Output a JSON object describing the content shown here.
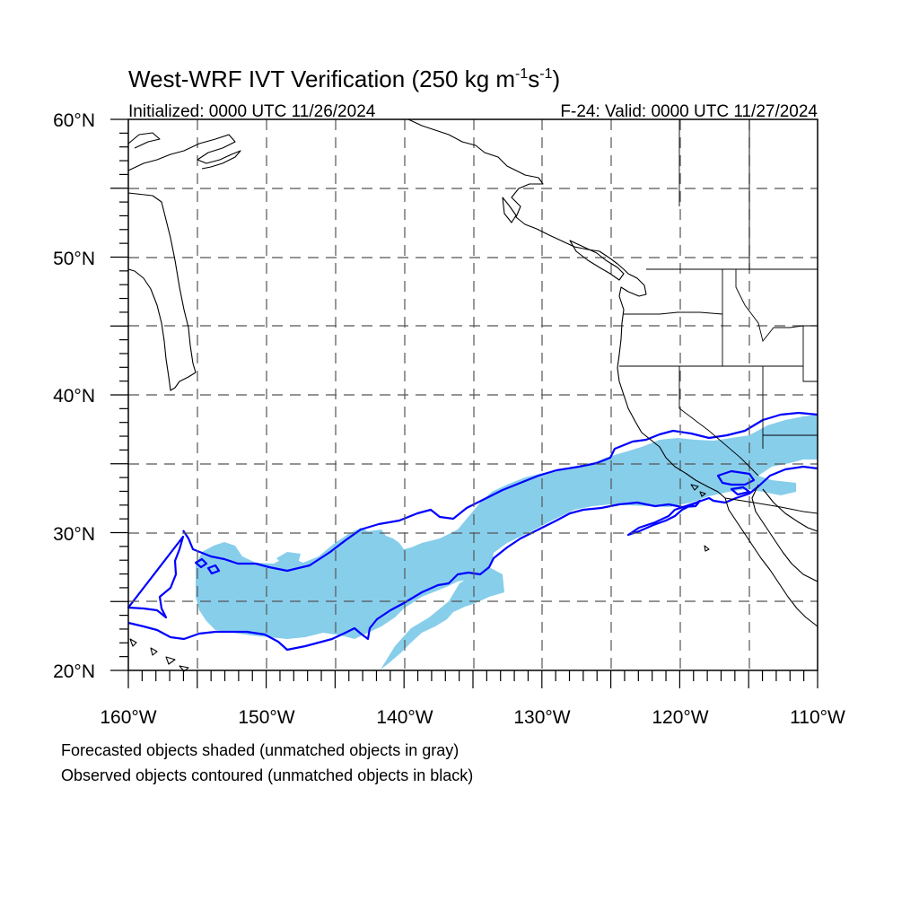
{
  "header": {
    "title_main": "West-WRF IVT Verification (250 kg m",
    "title_exp1": "-1",
    "title_mid": "s",
    "title_exp2": "-1",
    "title_end": ")",
    "initialized": "Initialized: 0000 UTC 11/26/2024",
    "valid": "F-24: Valid: 0000 UTC 11/27/2024"
  },
  "axes": {
    "lat_labels": [
      "60°N",
      "50°N",
      "40°N",
      "30°N",
      "20°N"
    ],
    "lon_labels": [
      "160°W",
      "150°W",
      "140°W",
      "130°W",
      "120°W",
      "110°W"
    ],
    "lat_range": [
      20,
      60
    ],
    "lon_range": [
      -160,
      -110
    ],
    "grid": true
  },
  "legend": {
    "forecast_note": "Forecasted objects shaded (unmatched objects in gray)",
    "observed_note": "Observed objects contoured (unmatched objects in black)"
  },
  "colors": {
    "forecast_fill": "#87ceeb",
    "observed_contour": "#0000ff",
    "coastline": "#000000",
    "grid": "#555555"
  }
}
